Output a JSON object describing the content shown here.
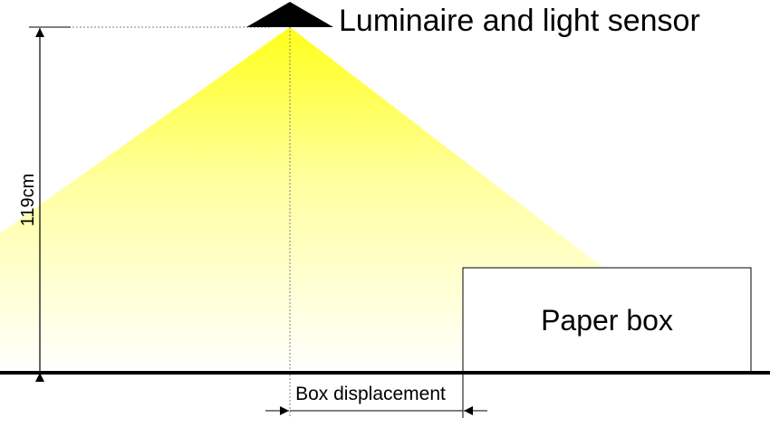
{
  "luminaire": {
    "label": "Luminaire and light sensor"
  },
  "height_dimension": {
    "label": "119cm",
    "value_cm": 119
  },
  "box": {
    "label": "Paper box"
  },
  "displacement": {
    "label": "Box displacement"
  },
  "colors": {
    "light_top": "#ffff1a",
    "light_bottom": "#ffffff",
    "line": "#000000",
    "guide": "#808080"
  }
}
